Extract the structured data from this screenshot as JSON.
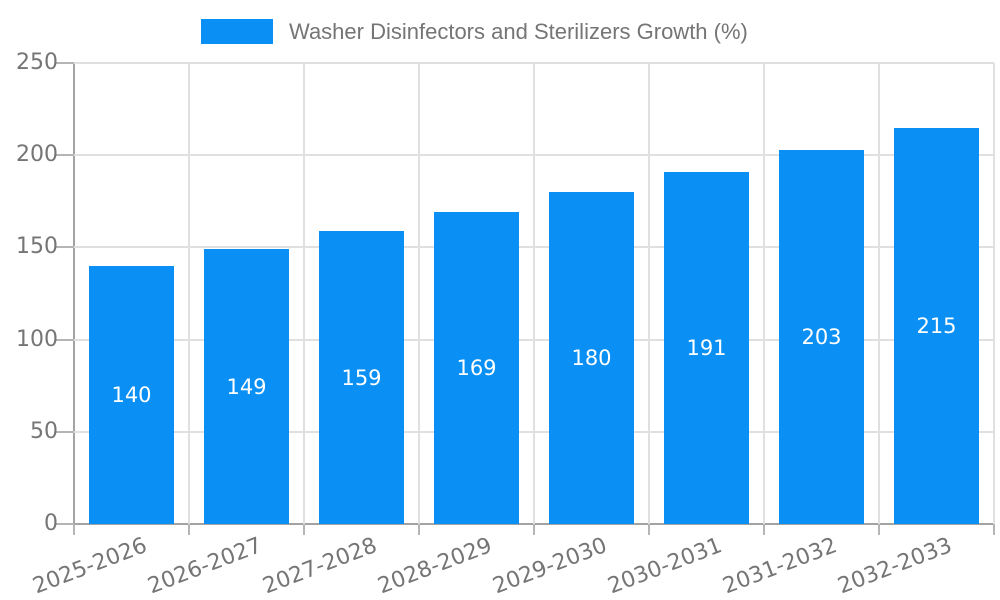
{
  "legend": {
    "label": "Washer Disinfectors and Sterilizers Growth (%)"
  },
  "chart_data": {
    "type": "bar",
    "title": "Washer Disinfectors and Sterilizers Growth (%)",
    "categories": [
      "2025-2026",
      "2026-2027",
      "2027-2028",
      "2028-2029",
      "2029-2030",
      "2030-2031",
      "2031-2032",
      "2032-2033"
    ],
    "values": [
      140,
      149,
      159,
      169,
      180,
      191,
      203,
      215
    ],
    "series": [
      {
        "name": "Washer Disinfectors and Sterilizers Growth (%)",
        "values": [
          140,
          149,
          159,
          169,
          180,
          191,
          203,
          215
        ]
      }
    ],
    "xlabel": "",
    "ylabel": "",
    "ylim": [
      0,
      250
    ],
    "yticks": [
      0,
      50,
      100,
      150,
      200,
      250
    ],
    "grid": true,
    "legend_position": "top",
    "bar_labels_inside": true,
    "colors": {
      "bar": "#0a90f4",
      "text": "#757575",
      "bar_label": "#ffffff",
      "axis": "#a3a3a3",
      "tick": "#b5b5b5",
      "grid": "#e0e0e0",
      "background": "#ffffff"
    }
  }
}
